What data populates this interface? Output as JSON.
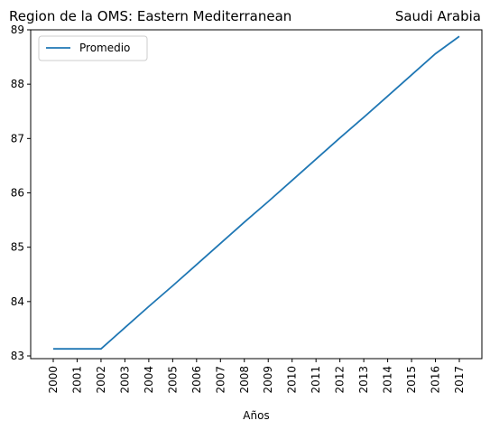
{
  "chart_data": {
    "type": "line",
    "title_left": "Region de la OMS: Eastern Mediterranean",
    "title_right": "Saudi Arabia",
    "xlabel": "Años",
    "ylabel": "",
    "x": [
      "2000",
      "2001",
      "2002",
      "2003",
      "2004",
      "2005",
      "2006",
      "2007",
      "2008",
      "2009",
      "2010",
      "2011",
      "2012",
      "2013",
      "2014",
      "2015",
      "2016",
      "2017"
    ],
    "yticks": [
      83,
      84,
      85,
      86,
      87,
      88,
      89
    ],
    "ylim": [
      82.95,
      89.0
    ],
    "grid": false,
    "legend_position": "upper-left",
    "series": [
      {
        "name": "Promedio",
        "color": "#1f77b4",
        "values": [
          83.13,
          83.13,
          83.13,
          83.52,
          83.91,
          84.29,
          84.68,
          85.07,
          85.46,
          85.84,
          86.23,
          86.62,
          87.01,
          87.39,
          87.78,
          88.17,
          88.56,
          88.88
        ]
      }
    ]
  }
}
